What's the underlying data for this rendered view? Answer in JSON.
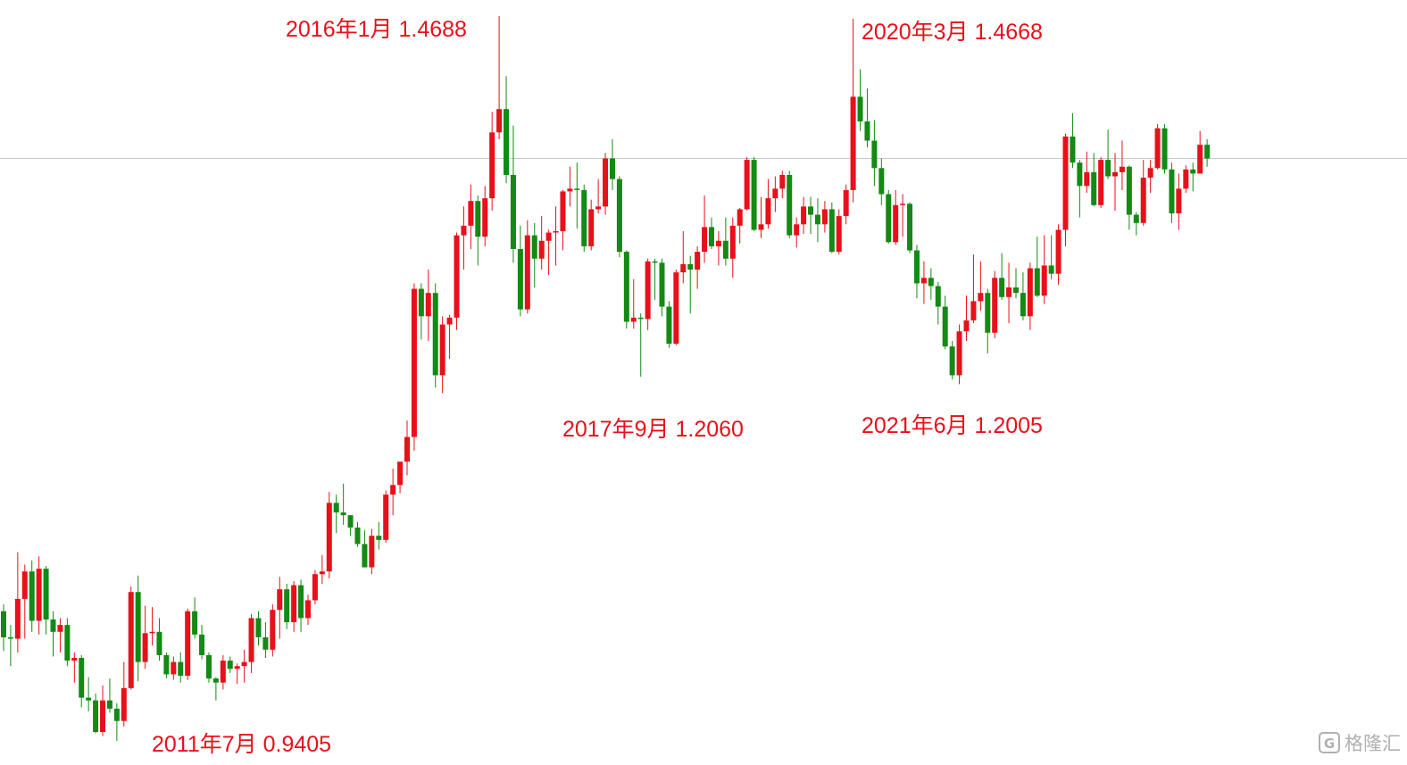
{
  "chart_data": {
    "type": "candlestick",
    "up_color": "#e8101a",
    "down_color": "#138a13",
    "price_line_color": "#c8c8c8",
    "ohlc": [
      [
        1.035,
        1.04,
        1.006,
        1.016
      ],
      [
        1.016,
        1.025,
        0.995,
        1.015
      ],
      [
        1.015,
        1.078,
        1.005,
        1.044
      ],
      [
        1.044,
        1.069,
        1.015,
        1.064
      ],
      [
        1.064,
        1.072,
        1.02,
        1.028
      ],
      [
        1.028,
        1.075,
        1.018,
        1.066
      ],
      [
        1.066,
        1.068,
        1.018,
        1.029
      ],
      [
        1.029,
        1.035,
        1.002,
        1.02
      ],
      [
        1.02,
        1.03,
        1.005,
        1.025
      ],
      [
        1.025,
        1.03,
        0.995,
        0.999
      ],
      [
        0.999,
        1.005,
        0.983,
        1.001
      ],
      [
        1.001,
        1.003,
        0.965,
        0.972
      ],
      [
        0.972,
        0.987,
        0.962,
        0.97
      ],
      [
        0.97,
        0.975,
        0.946,
        0.947
      ],
      [
        0.947,
        0.981,
        0.944,
        0.97
      ],
      [
        0.97,
        0.986,
        0.961,
        0.964
      ],
      [
        0.964,
        0.968,
        0.9405,
        0.955
      ],
      [
        0.955,
        0.998,
        0.951,
        0.979
      ],
      [
        0.979,
        1.053,
        0.978,
        1.049
      ],
      [
        1.049,
        1.061,
        0.984,
        0.998
      ],
      [
        0.998,
        1.039,
        0.993,
        1.019
      ],
      [
        1.019,
        1.038,
        1.01,
        1.02
      ],
      [
        1.02,
        1.03,
        0.999,
        1.003
      ],
      [
        1.003,
        1.005,
        0.986,
        0.989
      ],
      [
        0.989,
        1.002,
        0.985,
        0.998
      ],
      [
        0.998,
        1.005,
        0.983,
        0.988
      ],
      [
        0.988,
        1.037,
        0.985,
        1.035
      ],
      [
        1.035,
        1.045,
        1.015,
        1.018
      ],
      [
        1.018,
        1.025,
        1.0,
        1.003
      ],
      [
        1.003,
        1.005,
        0.983,
        0.986
      ],
      [
        0.986,
        0.987,
        0.97,
        0.983
      ],
      [
        0.983,
        1.003,
        0.978,
        0.999
      ],
      [
        0.999,
        1.002,
        0.99,
        0.993
      ],
      [
        0.993,
        0.997,
        0.982,
        0.995
      ],
      [
        0.995,
        1.007,
        0.983,
        0.998
      ],
      [
        0.998,
        1.033,
        0.99,
        1.03
      ],
      [
        1.03,
        1.035,
        1.01,
        1.016
      ],
      [
        1.016,
        1.027,
        1.001,
        1.007
      ],
      [
        1.007,
        1.04,
        1.002,
        1.036
      ],
      [
        1.036,
        1.06,
        1.015,
        1.051
      ],
      [
        1.051,
        1.055,
        1.022,
        1.027
      ],
      [
        1.027,
        1.057,
        1.02,
        1.054
      ],
      [
        1.054,
        1.058,
        1.02,
        1.03
      ],
      [
        1.03,
        1.047,
        1.025,
        1.043
      ],
      [
        1.043,
        1.065,
        1.04,
        1.062
      ],
      [
        1.062,
        1.076,
        1.055,
        1.064
      ],
      [
        1.064,
        1.122,
        1.059,
        1.114
      ],
      [
        1.114,
        1.12,
        1.092,
        1.107
      ],
      [
        1.107,
        1.128,
        1.098,
        1.105
      ],
      [
        1.105,
        1.105,
        1.09,
        1.096
      ],
      [
        1.096,
        1.1,
        1.082,
        1.084
      ],
      [
        1.084,
        1.094,
        1.067,
        1.067
      ],
      [
        1.067,
        1.095,
        1.062,
        1.09
      ],
      [
        1.09,
        1.1,
        1.08,
        1.087
      ],
      [
        1.087,
        1.123,
        1.085,
        1.12
      ],
      [
        1.12,
        1.139,
        1.105,
        1.127
      ],
      [
        1.127,
        1.144,
        1.121,
        1.144
      ],
      [
        1.144,
        1.174,
        1.134,
        1.162
      ],
      [
        1.162,
        1.274,
        1.152,
        1.27
      ],
      [
        1.27,
        1.274,
        1.233,
        1.25
      ],
      [
        1.25,
        1.284,
        1.232,
        1.267
      ],
      [
        1.267,
        1.274,
        1.198,
        1.207
      ],
      [
        1.207,
        1.25,
        1.194,
        1.244
      ],
      [
        1.244,
        1.251,
        1.219,
        1.249
      ],
      [
        1.249,
        1.311,
        1.24,
        1.309
      ],
      [
        1.309,
        1.33,
        1.284,
        1.316
      ],
      [
        1.316,
        1.346,
        1.299,
        1.334
      ],
      [
        1.334,
        1.338,
        1.287,
        1.308
      ],
      [
        1.308,
        1.345,
        1.301,
        1.336
      ],
      [
        1.336,
        1.399,
        1.327,
        1.384
      ],
      [
        1.384,
        1.4688,
        1.379,
        1.401
      ],
      [
        1.401,
        1.425,
        1.347,
        1.353
      ],
      [
        1.353,
        1.389,
        1.289,
        1.299
      ],
      [
        1.299,
        1.316,
        1.25,
        1.255
      ],
      [
        1.255,
        1.32,
        1.252,
        1.309
      ],
      [
        1.309,
        1.318,
        1.271,
        1.292
      ],
      [
        1.292,
        1.323,
        1.284,
        1.305
      ],
      [
        1.305,
        1.313,
        1.28,
        1.311
      ],
      [
        1.311,
        1.33,
        1.287,
        1.312
      ],
      [
        1.312,
        1.342,
        1.298,
        1.341
      ],
      [
        1.341,
        1.359,
        1.33,
        1.343
      ],
      [
        1.343,
        1.362,
        1.314,
        1.342
      ],
      [
        1.342,
        1.346,
        1.297,
        1.301
      ],
      [
        1.301,
        1.335,
        1.298,
        1.328
      ],
      [
        1.328,
        1.35,
        1.325,
        1.33
      ],
      [
        1.33,
        1.369,
        1.324,
        1.365
      ],
      [
        1.365,
        1.379,
        1.342,
        1.35
      ],
      [
        1.35,
        1.352,
        1.293,
        1.297
      ],
      [
        1.297,
        1.298,
        1.241,
        1.246
      ],
      [
        1.246,
        1.277,
        1.241,
        1.249
      ],
      [
        1.249,
        1.252,
        1.206,
        1.248
      ],
      [
        1.248,
        1.292,
        1.24,
        1.29
      ],
      [
        1.29,
        1.292,
        1.262,
        1.289
      ],
      [
        1.289,
        1.292,
        1.25,
        1.257
      ],
      [
        1.257,
        1.261,
        1.227,
        1.23
      ],
      [
        1.23,
        1.284,
        1.229,
        1.282
      ],
      [
        1.282,
        1.312,
        1.274,
        1.288
      ],
      [
        1.288,
        1.294,
        1.252,
        1.284
      ],
      [
        1.284,
        1.301,
        1.27,
        1.297
      ],
      [
        1.297,
        1.338,
        1.289,
        1.315
      ],
      [
        1.315,
        1.322,
        1.299,
        1.301
      ],
      [
        1.301,
        1.312,
        1.287,
        1.305
      ],
      [
        1.305,
        1.322,
        1.287,
        1.292
      ],
      [
        1.292,
        1.322,
        1.278,
        1.316
      ],
      [
        1.316,
        1.329,
        1.303,
        1.328
      ],
      [
        1.328,
        1.366,
        1.327,
        1.364
      ],
      [
        1.364,
        1.366,
        1.312,
        1.313
      ],
      [
        1.313,
        1.337,
        1.307,
        1.317
      ],
      [
        1.317,
        1.35,
        1.314,
        1.336
      ],
      [
        1.336,
        1.352,
        1.326,
        1.343
      ],
      [
        1.343,
        1.356,
        1.336,
        1.353
      ],
      [
        1.353,
        1.356,
        1.307,
        1.309
      ],
      [
        1.309,
        1.322,
        1.3,
        1.317
      ],
      [
        1.317,
        1.337,
        1.31,
        1.33
      ],
      [
        1.33,
        1.337,
        1.31,
        1.324
      ],
      [
        1.324,
        1.336,
        1.304,
        1.317
      ],
      [
        1.317,
        1.334,
        1.311,
        1.328
      ],
      [
        1.328,
        1.333,
        1.296,
        1.297
      ],
      [
        1.297,
        1.328,
        1.295,
        1.323
      ],
      [
        1.323,
        1.346,
        1.317,
        1.342
      ],
      [
        1.342,
        1.4668,
        1.333,
        1.41
      ],
      [
        1.41,
        1.43,
        1.385,
        1.392
      ],
      [
        1.392,
        1.416,
        1.373,
        1.378
      ],
      [
        1.378,
        1.393,
        1.345,
        1.358
      ],
      [
        1.358,
        1.365,
        1.331,
        1.339
      ],
      [
        1.339,
        1.342,
        1.303,
        1.304
      ],
      [
        1.304,
        1.342,
        1.302,
        1.331
      ],
      [
        1.331,
        1.339,
        1.308,
        1.332
      ],
      [
        1.332,
        1.333,
        1.296,
        1.298
      ],
      [
        1.298,
        1.302,
        1.263,
        1.274
      ],
      [
        1.274,
        1.29,
        1.259,
        1.278
      ],
      [
        1.278,
        1.285,
        1.262,
        1.272
      ],
      [
        1.272,
        1.275,
        1.244,
        1.257
      ],
      [
        1.257,
        1.265,
        1.226,
        1.228
      ],
      [
        1.228,
        1.232,
        1.204,
        1.207
      ],
      [
        1.207,
        1.244,
        1.2005,
        1.239
      ],
      [
        1.239,
        1.265,
        1.232,
        1.247
      ],
      [
        1.247,
        1.295,
        1.245,
        1.261
      ],
      [
        1.261,
        1.29,
        1.254,
        1.267
      ],
      [
        1.267,
        1.27,
        1.223,
        1.238
      ],
      [
        1.238,
        1.283,
        1.234,
        1.278
      ],
      [
        1.278,
        1.296,
        1.262,
        1.264
      ],
      [
        1.264,
        1.289,
        1.245,
        1.271
      ],
      [
        1.271,
        1.285,
        1.263,
        1.267
      ],
      [
        1.267,
        1.282,
        1.247,
        1.25
      ],
      [
        1.25,
        1.289,
        1.24,
        1.285
      ],
      [
        1.285,
        1.308,
        1.264,
        1.265
      ],
      [
        1.265,
        1.309,
        1.259,
        1.287
      ],
      [
        1.287,
        1.309,
        1.277,
        1.281
      ],
      [
        1.281,
        1.317,
        1.273,
        1.313
      ],
      [
        1.313,
        1.383,
        1.301,
        1.381
      ],
      [
        1.381,
        1.398,
        1.358,
        1.362
      ],
      [
        1.362,
        1.364,
        1.322,
        1.345
      ],
      [
        1.345,
        1.37,
        1.34,
        1.355
      ],
      [
        1.355,
        1.369,
        1.33,
        1.331
      ],
      [
        1.331,
        1.366,
        1.329,
        1.364
      ],
      [
        1.364,
        1.386,
        1.35,
        1.352
      ],
      [
        1.352,
        1.369,
        1.327,
        1.355
      ],
      [
        1.355,
        1.378,
        1.342,
        1.359
      ],
      [
        1.359,
        1.36,
        1.313,
        1.324
      ],
      [
        1.324,
        1.326,
        1.309,
        1.318
      ],
      [
        1.318,
        1.364,
        1.316,
        1.351
      ],
      [
        1.351,
        1.364,
        1.34,
        1.358
      ],
      [
        1.358,
        1.39,
        1.357,
        1.387
      ],
      [
        1.387,
        1.39,
        1.354,
        1.357
      ],
      [
        1.357,
        1.362,
        1.318,
        1.325
      ],
      [
        1.325,
        1.354,
        1.313,
        1.343
      ],
      [
        1.343,
        1.36,
        1.34,
        1.357
      ],
      [
        1.357,
        1.362,
        1.341,
        1.354
      ],
      [
        1.354,
        1.385,
        1.354,
        1.375
      ],
      [
        1.375,
        1.379,
        1.359,
        1.365
      ]
    ],
    "ylim": [
      0.9405,
      1.4688
    ],
    "annotations": [
      "2016年1月  1.4688",
      "2020年3月  1.4668",
      "2017年9月  1.2060",
      "2021年6月  1.2005",
      "2011年7月  0.9405"
    ],
    "annotation_color": "#e8101a",
    "watermark": "格隆汇"
  }
}
